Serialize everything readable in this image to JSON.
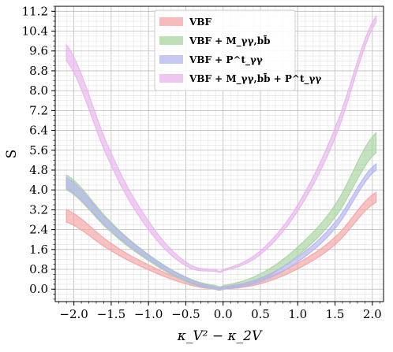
{
  "chart_data": {
    "type": "area",
    "xlabel": "κ_V² − κ_2V",
    "ylabel": "S",
    "xlim": [
      -2.25,
      2.15
    ],
    "ylim": [
      -0.5,
      11.4
    ],
    "xticks": [
      "−2.0",
      "−1.5",
      "−1.0",
      "−0.5",
      "0.0",
      "0.5",
      "1.0",
      "1.5",
      "2.0"
    ],
    "xtick_values": [
      -2.0,
      -1.5,
      -1.0,
      -0.5,
      0.0,
      0.5,
      1.0,
      1.5,
      2.0
    ],
    "yticks": [
      "0.0",
      "0.8",
      "1.6",
      "2.4",
      "3.2",
      "4.0",
      "4.8",
      "5.6",
      "6.4",
      "7.2",
      "8.0",
      "8.8",
      "9.6",
      "10.4",
      "11.2"
    ],
    "ytick_values": [
      0.0,
      0.8,
      1.6,
      2.4,
      3.2,
      4.0,
      4.8,
      5.6,
      6.4,
      7.2,
      8.0,
      8.8,
      9.6,
      10.4,
      11.2
    ],
    "grid": true,
    "legend_placement": "top-center",
    "x_range": [
      -2.1,
      2.05
    ],
    "series": [
      {
        "name": "VBF",
        "color": "#f4a3a3",
        "x": [
          -2.1,
          -1.5,
          -1.0,
          -0.5,
          -0.1,
          0.0,
          0.5,
          1.0,
          1.5,
          2.05
        ],
        "upper": [
          3.2,
          1.85,
          0.98,
          0.35,
          0.08,
          0.08,
          0.38,
          1.05,
          2.1,
          3.9
        ],
        "lower": [
          2.7,
          1.55,
          0.78,
          0.22,
          0.0,
          0.0,
          0.22,
          0.82,
          1.8,
          3.5
        ]
      },
      {
        "name": "VBF + M_γγ,bb̄",
        "color": "#a8d4a0",
        "x": [
          -2.1,
          -1.5,
          -1.0,
          -0.5,
          -0.1,
          0.0,
          0.5,
          1.0,
          1.5,
          2.05
        ],
        "upper": [
          4.6,
          2.7,
          1.4,
          0.5,
          0.15,
          0.15,
          0.62,
          1.7,
          3.4,
          6.3
        ],
        "lower": [
          4.0,
          2.3,
          1.15,
          0.32,
          0.0,
          0.02,
          0.38,
          1.35,
          2.9,
          5.5
        ]
      },
      {
        "name": "VBF + P^t_γγ",
        "color": "#b4b4f0",
        "x": [
          -2.1,
          -1.5,
          -1.0,
          -0.5,
          -0.1,
          0.0,
          0.5,
          1.0,
          1.5,
          2.05
        ],
        "upper": [
          4.5,
          2.65,
          1.38,
          0.48,
          0.1,
          0.1,
          0.45,
          1.3,
          2.7,
          5.05
        ],
        "lower": [
          4.05,
          2.35,
          1.2,
          0.35,
          0.0,
          0.0,
          0.3,
          1.1,
          2.45,
          4.8
        ]
      },
      {
        "name": "VBF + M_γγ,bb̄ + P^t_γγ",
        "color": "#e8b4ec",
        "x": [
          -2.1,
          -1.5,
          -1.0,
          -0.5,
          -0.1,
          0.0,
          0.5,
          1.0,
          1.5,
          2.05
        ],
        "upper": [
          9.85,
          5.5,
          2.75,
          1.1,
          0.78,
          0.8,
          1.55,
          3.4,
          6.5,
          11.0
        ],
        "lower": [
          9.2,
          5.0,
          2.4,
          0.95,
          0.72,
          0.74,
          1.4,
          3.15,
          6.1,
          10.75
        ]
      }
    ]
  }
}
